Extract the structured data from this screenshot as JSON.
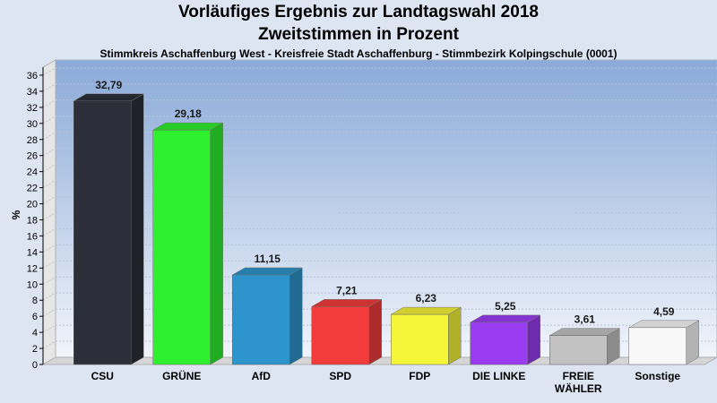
{
  "header": {
    "title": "Vorläufiges Ergebnis zur Landtagswahl 2018",
    "subtitle": "Zweitstimmen in Prozent",
    "caption": "Stimmkreis Aschaffenburg West - Kreisfreie Stadt Aschaffenburg - Stimmbezirk Kolpingschule (0001)"
  },
  "chart_data": {
    "type": "bar",
    "title": "Vorläufiges Ergebnis zur Landtagswahl 2018",
    "subtitle": "Zweitstimmen in Prozent",
    "ylabel": "%",
    "xlabel": "",
    "ylim": [
      0,
      37
    ],
    "yticks": [
      0,
      2,
      4,
      6,
      8,
      10,
      12,
      14,
      16,
      18,
      20,
      22,
      24,
      26,
      28,
      30,
      32,
      34,
      36
    ],
    "grid": true,
    "categories": [
      "CSU",
      "GRÜNE",
      "AfD",
      "SPD",
      "FDP",
      "DIE LINKE",
      "FREIE WÄHLER",
      "Sonstige"
    ],
    "category_lines": [
      [
        "CSU"
      ],
      [
        "GRÜNE"
      ],
      [
        "AfD"
      ],
      [
        "SPD"
      ],
      [
        "FDP"
      ],
      [
        "DIE LINKE"
      ],
      [
        "FREIE",
        "WÄHLER"
      ],
      [
        "Sonstige"
      ]
    ],
    "values": [
      32.79,
      29.18,
      11.15,
      7.21,
      6.23,
      5.25,
      3.61,
      4.59
    ],
    "value_labels": [
      "32,79",
      "29,18",
      "11,15",
      "7,21",
      "6,23",
      "5,25",
      "3,61",
      "4,59"
    ],
    "colors": [
      "#2c2f3a",
      "#2ef02e",
      "#2e95cc",
      "#f23c3c",
      "#f5f53a",
      "#9a3cf2",
      "#c2c2c2",
      "#f8f8f8"
    ]
  }
}
